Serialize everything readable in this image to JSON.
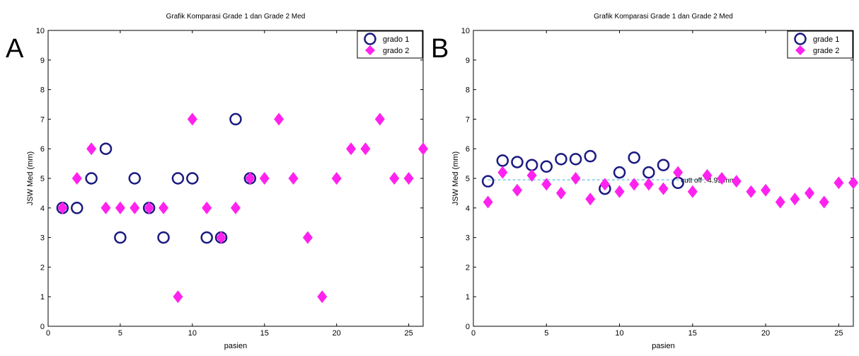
{
  "colors": {
    "grade1": "#1a1a80",
    "grade2": "#ff22ee",
    "cutoff": "#7ec8e3"
  },
  "chart_data": [
    {
      "panel_label": "A",
      "type": "scatter",
      "title": "Grafik Komparasi Grade 1 dan Grade 2 Med",
      "xlabel": "pasien",
      "ylabel": "JSW Med (mm)",
      "xlim": [
        0,
        26
      ],
      "ylim": [
        0,
        10
      ],
      "xticks": [
        0,
        5,
        10,
        15,
        20,
        25
      ],
      "yticks": [
        0,
        1,
        2,
        3,
        4,
        5,
        6,
        7,
        8,
        9,
        10
      ],
      "grid": false,
      "legend_position": "top-right",
      "series": [
        {
          "name": "grado 1",
          "marker": "circle",
          "x": [
            1,
            2,
            3,
            4,
            5,
            6,
            7,
            8,
            9,
            10,
            11,
            12,
            13,
            14
          ],
          "y": [
            4,
            4,
            5,
            6,
            3,
            5,
            4,
            3,
            5,
            5,
            3,
            3,
            7,
            5
          ]
        },
        {
          "name": "grado 2",
          "marker": "diamond",
          "x": [
            1,
            2,
            3,
            4,
            5,
            6,
            7,
            8,
            9,
            10,
            11,
            12,
            13,
            14,
            15,
            16,
            17,
            18,
            19,
            20,
            21,
            22,
            23,
            24,
            25,
            26
          ],
          "y": [
            4,
            5,
            6,
            4,
            4,
            4,
            4,
            4,
            1,
            7,
            4,
            3,
            4,
            5,
            5,
            7,
            5,
            3,
            1,
            5,
            6,
            6,
            7,
            5,
            5,
            6
          ]
        }
      ]
    },
    {
      "panel_label": "B",
      "type": "scatter",
      "title": "Grafik Komparasi Grade 1 dan Grade 2 Med",
      "xlabel": "pasien",
      "ylabel": "JSW Med (mm)",
      "xlim": [
        0,
        26
      ],
      "ylim": [
        0,
        10
      ],
      "xticks": [
        0,
        5,
        10,
        15,
        20,
        25
      ],
      "yticks": [
        0,
        1,
        2,
        3,
        4,
        5,
        6,
        7,
        8,
        9,
        10
      ],
      "grid": false,
      "legend_position": "top-right",
      "cutoff": {
        "y": 4.95,
        "label": "cutt off : 4.95 mm",
        "x_range": [
          1,
          16
        ]
      },
      "series": [
        {
          "name": "grade 1",
          "marker": "circle",
          "x": [
            1,
            2,
            3,
            4,
            5,
            6,
            7,
            8,
            9,
            10,
            11,
            12,
            13,
            14
          ],
          "y": [
            4.9,
            5.6,
            5.55,
            5.45,
            5.4,
            5.65,
            5.65,
            5.75,
            4.65,
            5.2,
            5.7,
            5.2,
            5.45,
            4.85
          ]
        },
        {
          "name": "grade 2",
          "marker": "diamond",
          "x": [
            1,
            2,
            3,
            4,
            5,
            6,
            7,
            8,
            9,
            10,
            11,
            12,
            13,
            14,
            15,
            16,
            17,
            18,
            19,
            20,
            21,
            22,
            23,
            24,
            25,
            26
          ],
          "y": [
            4.2,
            5.2,
            4.6,
            5.1,
            4.8,
            4.5,
            5.0,
            4.3,
            4.8,
            4.55,
            4.8,
            4.8,
            4.65,
            5.2,
            4.55,
            5.1,
            5.0,
            4.9,
            4.55,
            4.6,
            4.2,
            4.3,
            4.5,
            4.2,
            4.85,
            4.85
          ]
        }
      ]
    }
  ]
}
